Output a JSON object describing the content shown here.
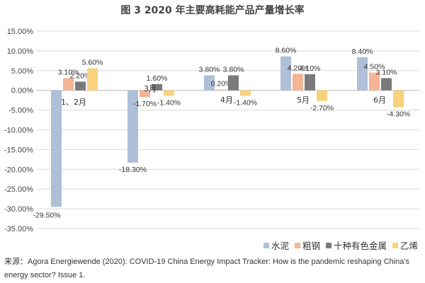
{
  "chart_data": {
    "type": "bar",
    "title": "图 3 2020 年主要高耗能产品产量增长率",
    "categories": [
      "1、2月",
      "3月",
      "4月",
      "5月",
      "6月"
    ],
    "series": [
      {
        "name": "水泥",
        "color": "#aebfd7",
        "values": [
          -29.5,
          -18.3,
          3.8,
          8.6,
          8.4
        ],
        "labels": [
          "-29.50%",
          "-18.30%",
          "3.80%",
          "8.60%",
          "8.40%"
        ]
      },
      {
        "name": "粗钢",
        "color": "#f4b595",
        "values": [
          3.1,
          -1.7,
          0.2,
          4.2,
          4.5
        ],
        "labels": [
          "3.10%",
          "-1.70%",
          "0.20%",
          "4.20%",
          "4.50%"
        ]
      },
      {
        "name": "十种有色金属",
        "color": "#7a7a7a",
        "values": [
          2.2,
          1.6,
          3.8,
          4.1,
          3.1
        ],
        "labels": [
          "2.20%",
          "1.60%",
          "3.80%",
          "4.10%",
          "3.10%"
        ]
      },
      {
        "name": "乙烯",
        "color": "#f8d27c",
        "values": [
          5.6,
          -1.4,
          -1.4,
          -2.7,
          -4.3
        ],
        "labels": [
          "5.60%",
          "-1.40%",
          "-1.40%",
          "-2.70%",
          "-4.30%"
        ]
      }
    ],
    "ylim": [
      -35,
      15
    ],
    "yticks": [
      15,
      10,
      5,
      0,
      -5,
      -10,
      -15,
      -20,
      -25,
      -30,
      -35
    ],
    "ytick_labels": [
      "15.00%",
      "10.00%",
      "5.00%",
      "0.00%",
      "-5.00%",
      "-10.00%",
      "-15.00%",
      "-20.00%",
      "-25.00%",
      "-30.00%",
      "-35.00%"
    ],
    "grid": true,
    "legend_position": "bottom-right"
  },
  "source": "来源：Agora Energiewende (2020): COVID-19 China Energy Impact Tracker: How is the pandemic reshaping China's energy sector? Issue 1."
}
